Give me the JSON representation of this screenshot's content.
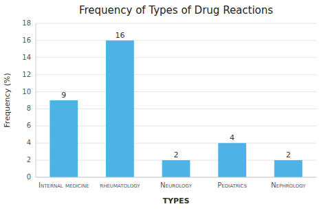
{
  "chart_data": {
    "type": "bar",
    "title": "Frequency of Types of Drug Reactions",
    "categories": [
      "Internal medicine",
      "rheumatology",
      "Neurology",
      "Pediatrics",
      "Nephrology"
    ],
    "values": [
      9,
      16,
      2,
      4,
      2
    ],
    "color": "#4db3e6",
    "xlabel": "TYPES",
    "ylabel": "Frequency (%)",
    "ylim": [
      0,
      18
    ],
    "yticks": [
      0,
      2,
      4,
      6,
      8,
      10,
      12,
      14,
      16,
      18
    ],
    "grid": true,
    "data_labels": true
  }
}
